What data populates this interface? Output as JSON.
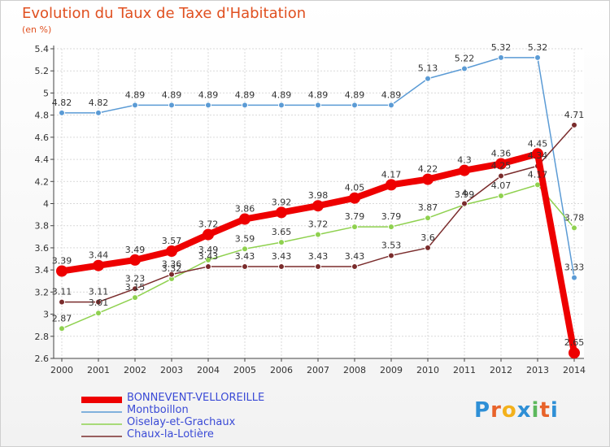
{
  "title": "Evolution du Taux de Taxe d'Habitation",
  "unit": "(en %)",
  "logo": {
    "text": "Proxiti",
    "letters": [
      "P",
      "r",
      "o",
      "x",
      "i",
      "t",
      "i"
    ],
    "colors": [
      "#2e8fd6",
      "#e8632a",
      "#f3b11c",
      "#2e8fd6",
      "#5cb85c",
      "#e8632a",
      "#2e8fd6"
    ]
  },
  "chart_data": {
    "type": "line",
    "x": [
      "2000",
      "2001",
      "2002",
      "2003",
      "2004",
      "2005",
      "2006",
      "2007",
      "2008",
      "2009",
      "2010",
      "2011",
      "2012",
      "2013",
      "2014"
    ],
    "ylim": [
      2.6,
      5.4
    ],
    "yticks": [
      "2.6",
      "2.8",
      "3",
      "3.2",
      "3.4",
      "3.6",
      "3.8",
      "4",
      "4.2",
      "4.4",
      "4.6",
      "4.8",
      "5",
      "5.2",
      "5.4"
    ],
    "grid": true,
    "series": [
      {
        "name": "BONNEVENT-VELLOREILLE",
        "color": "#ee0000",
        "values": [
          3.39,
          3.44,
          3.49,
          3.57,
          3.72,
          3.86,
          3.92,
          3.98,
          4.05,
          4.17,
          4.22,
          4.3,
          4.36,
          4.45,
          2.65
        ],
        "labels": [
          "3.39",
          "3.44",
          "3.49",
          "3.57",
          "3.72",
          "3.86",
          "3.92",
          "3.98",
          "4.05",
          "4.17",
          "4.22",
          "4.3",
          "4.36",
          "4.45",
          "2.65"
        ]
      },
      {
        "name": "Montboillon",
        "color": "#5b9bd5",
        "values": [
          4.82,
          4.82,
          4.89,
          4.89,
          4.89,
          4.89,
          4.89,
          4.89,
          4.89,
          4.89,
          5.13,
          5.22,
          5.32,
          5.32,
          3.33
        ],
        "labels": [
          "4.82",
          "4.82",
          "4.89",
          "4.89",
          "4.89",
          "4.89",
          "4.89",
          "4.89",
          "4.89",
          "4.89",
          "5.13",
          "5.22",
          "5.32",
          "5.32",
          "3.33"
        ]
      },
      {
        "name": "Oiselay-et-Grachaux",
        "color": "#8fd14f",
        "values": [
          2.87,
          3.01,
          3.15,
          3.32,
          3.49,
          3.59,
          3.65,
          3.72,
          3.79,
          3.79,
          3.87,
          3.99,
          4.07,
          4.17,
          3.78
        ],
        "labels": [
          "2.87",
          "3.01",
          "3.15",
          "3.32",
          "3.49",
          "3.59",
          "3.65",
          "3.72",
          "3.79",
          "3.79",
          "3.87",
          "3.99",
          "4.07",
          "4.17",
          "3.78"
        ]
      },
      {
        "name": "Chaux-la-Lotière",
        "color": "#7a2c2c",
        "values": [
          3.11,
          3.11,
          3.23,
          3.36,
          3.43,
          3.43,
          3.43,
          3.43,
          3.43,
          3.53,
          3.6,
          4.0,
          4.25,
          4.34,
          4.71
        ],
        "labels": [
          "3.11",
          "3.11",
          "3.23",
          "3.36",
          "3.43",
          "3.43",
          "3.43",
          "3.43",
          "3.43",
          "3.53",
          "3.6",
          "4",
          "4.25",
          "4.34",
          "4.71"
        ]
      }
    ]
  }
}
